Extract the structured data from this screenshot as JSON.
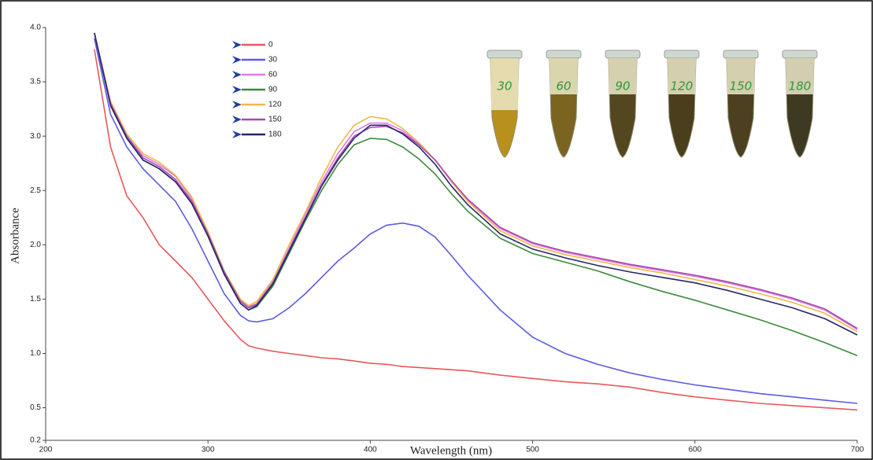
{
  "chart_data": {
    "type": "line",
    "xlabel": "Wavelength (nm)",
    "ylabel": "Absorbance",
    "xlim": [
      200,
      700
    ],
    "xticks": [
      200,
      300,
      400,
      500,
      600,
      700
    ],
    "ylim": [
      0.2,
      4.0
    ],
    "yticks": [
      {
        "value": 4.0,
        "label": "4.0"
      },
      {
        "value": 3.5,
        "label": "3.5"
      },
      {
        "value": 3.0,
        "label": "3.0"
      },
      {
        "value": 2.5,
        "label": "2.5"
      },
      {
        "value": 2.0,
        "label": "2.0"
      },
      {
        "value": 1.5,
        "label": "1.5"
      },
      {
        "value": 1.0,
        "label": "1.0"
      },
      {
        "value": 0.5,
        "label": "0.5"
      },
      {
        "value": 0.2,
        "label": "0.2"
      }
    ],
    "legend": "top-left",
    "x": [
      230,
      240,
      250,
      260,
      270,
      280,
      290,
      300,
      310,
      320,
      325,
      330,
      340,
      350,
      360,
      370,
      380,
      390,
      400,
      410,
      420,
      430,
      440,
      450,
      460,
      480,
      500,
      520,
      540,
      560,
      580,
      600,
      620,
      640,
      660,
      680,
      700
    ],
    "series": [
      {
        "name": "0",
        "color": "#e8585a",
        "values": [
          3.8,
          2.9,
          2.45,
          2.25,
          2.0,
          1.85,
          1.7,
          1.5,
          1.3,
          1.13,
          1.07,
          1.05,
          1.02,
          1.0,
          0.98,
          0.96,
          0.95,
          0.93,
          0.91,
          0.9,
          0.88,
          0.87,
          0.86,
          0.85,
          0.84,
          0.8,
          0.77,
          0.74,
          0.72,
          0.69,
          0.64,
          0.6,
          0.57,
          0.54,
          0.52,
          0.5,
          0.48
        ]
      },
      {
        "name": "30",
        "color": "#5c5ce0",
        "values": [
          3.9,
          3.2,
          2.9,
          2.7,
          2.55,
          2.4,
          2.15,
          1.85,
          1.55,
          1.35,
          1.3,
          1.29,
          1.32,
          1.42,
          1.55,
          1.7,
          1.85,
          1.97,
          2.1,
          2.18,
          2.2,
          2.17,
          2.07,
          1.9,
          1.72,
          1.4,
          1.15,
          1.0,
          0.9,
          0.82,
          0.76,
          0.71,
          0.67,
          0.63,
          0.6,
          0.57,
          0.54
        ]
      },
      {
        "name": "60",
        "color": "#e07ae6",
        "values": [
          3.95,
          3.3,
          3.0,
          2.82,
          2.74,
          2.63,
          2.42,
          2.12,
          1.76,
          1.49,
          1.43,
          1.46,
          1.66,
          1.97,
          2.28,
          2.58,
          2.84,
          3.04,
          3.12,
          3.12,
          3.05,
          2.93,
          2.78,
          2.58,
          2.41,
          2.15,
          2.01,
          1.93,
          1.87,
          1.81,
          1.76,
          1.71,
          1.65,
          1.58,
          1.5,
          1.4,
          1.22
        ]
      },
      {
        "name": "90",
        "color": "#3c8a3c",
        "values": [
          3.95,
          3.28,
          2.98,
          2.78,
          2.7,
          2.58,
          2.38,
          2.08,
          1.73,
          1.46,
          1.4,
          1.43,
          1.62,
          1.92,
          2.22,
          2.5,
          2.74,
          2.92,
          2.98,
          2.97,
          2.9,
          2.79,
          2.65,
          2.47,
          2.31,
          2.06,
          1.92,
          1.84,
          1.76,
          1.66,
          1.57,
          1.49,
          1.4,
          1.31,
          1.21,
          1.1,
          0.98
        ]
      },
      {
        "name": "120",
        "color": "#f0b848",
        "values": [
          3.95,
          3.32,
          3.02,
          2.84,
          2.76,
          2.64,
          2.44,
          2.12,
          1.76,
          1.5,
          1.44,
          1.48,
          1.68,
          2.0,
          2.3,
          2.62,
          2.9,
          3.1,
          3.18,
          3.16,
          3.07,
          2.94,
          2.78,
          2.58,
          2.4,
          2.13,
          1.99,
          1.91,
          1.85,
          1.79,
          1.74,
          1.68,
          1.62,
          1.55,
          1.47,
          1.37,
          1.2
        ]
      },
      {
        "name": "150",
        "color": "#a748b0",
        "values": [
          3.95,
          3.3,
          3.0,
          2.8,
          2.72,
          2.6,
          2.4,
          2.1,
          1.75,
          1.48,
          1.42,
          1.45,
          1.65,
          1.95,
          2.25,
          2.55,
          2.8,
          3.0,
          3.08,
          3.09,
          3.03,
          2.92,
          2.78,
          2.59,
          2.42,
          2.16,
          2.02,
          1.94,
          1.88,
          1.82,
          1.77,
          1.72,
          1.66,
          1.59,
          1.51,
          1.41,
          1.23
        ]
      },
      {
        "name": "180",
        "color": "#26266a",
        "values": [
          3.95,
          3.28,
          2.98,
          2.78,
          2.7,
          2.58,
          2.38,
          2.08,
          1.73,
          1.46,
          1.4,
          1.44,
          1.64,
          1.94,
          2.24,
          2.54,
          2.78,
          2.98,
          3.1,
          3.1,
          3.02,
          2.9,
          2.74,
          2.54,
          2.37,
          2.1,
          1.96,
          1.88,
          1.81,
          1.75,
          1.7,
          1.65,
          1.58,
          1.5,
          1.42,
          1.32,
          1.17
        ]
      }
    ]
  },
  "inset": {
    "labels": [
      "30",
      "60",
      "90",
      "120",
      "150",
      "180"
    ]
  }
}
